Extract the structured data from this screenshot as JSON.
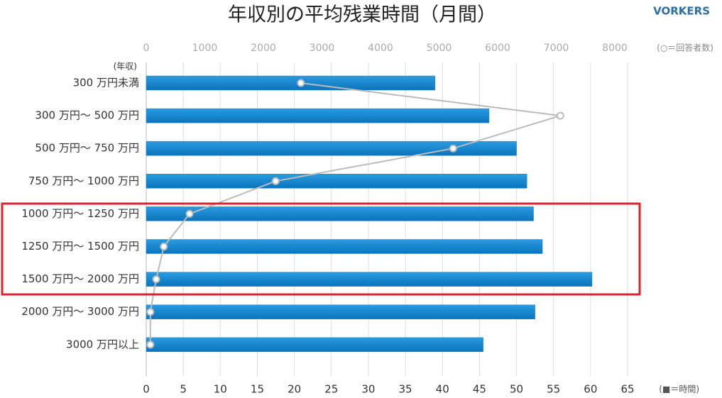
{
  "chart_data": {
    "type": "bar",
    "orientation": "horizontal",
    "title": "年収別の平均残業時間（月間）",
    "brand": "VORKERS",
    "category_axis_label": "(年収)",
    "categories": [
      "300 万円未満",
      "300 万円～ 500 万円",
      "500 万円～ 750 万円",
      "750 万円～ 1000 万円",
      "1000 万円～ 1250 万円",
      "1250 万円～ 1500 万円",
      "1500 万円～ 2000 万円",
      "2000 万円～ 3000 万円",
      "3000 万円以上"
    ],
    "series": [
      {
        "name": "(■＝時間)",
        "color": "#1a8ad4",
        "values": [
          39,
          46.3,
          50,
          51.4,
          52.3,
          53.5,
          60.2,
          52.5,
          45.5
        ]
      },
      {
        "name": "(○＝回答者数)",
        "color": "#bbbbbb",
        "axis": "x2",
        "values": [
          2640,
          7070,
          5240,
          2210,
          740,
          300,
          170,
          70,
          70
        ]
      }
    ],
    "xlim": [
      0,
      65
    ],
    "xticks": [
      0,
      5,
      10,
      15,
      20,
      25,
      30,
      35,
      40,
      45,
      50,
      55,
      60,
      65
    ],
    "x2lim": [
      0,
      8000
    ],
    "x2ticks": [
      0,
      1000,
      2000,
      3000,
      4000,
      5000,
      6000,
      7000,
      8000
    ],
    "grid": true
  }
}
